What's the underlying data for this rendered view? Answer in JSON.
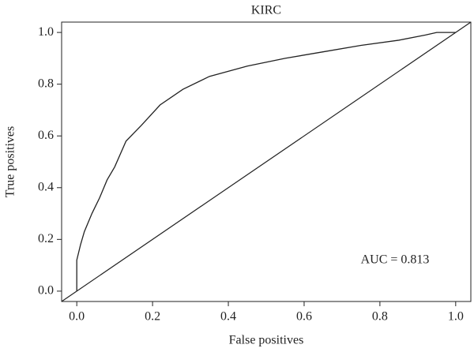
{
  "chart_data": {
    "type": "line",
    "title": "KIRC",
    "x_label": "False positives",
    "y_label": "True positives",
    "annotation": "AUC = 0.813",
    "x": [
      0,
      0,
      0.01,
      0.02,
      0.04,
      0.05,
      0.06,
      0.08,
      0.1,
      0.13,
      0.17,
      0.22,
      0.28,
      0.35,
      0.45,
      0.55,
      0.65,
      0.75,
      0.85,
      0.92,
      0.95,
      1
    ],
    "series": [
      {
        "color": "#222222",
        "values": [
          0,
          0.12,
          0.18,
          0.23,
          0.3,
          0.33,
          0.36,
          0.43,
          0.48,
          0.58,
          0.64,
          0.72,
          0.78,
          0.83,
          0.87,
          0.9,
          0.925,
          0.95,
          0.97,
          0.99,
          1,
          1
        ]
      }
    ],
    "abline": {
      "intercept": 0,
      "slope": 1,
      "color": "#222222"
    },
    "xlim": [
      -0.04,
      1.04
    ],
    "ylim": [
      -0.04,
      1.04
    ],
    "xticks": [
      {
        "value": 0,
        "label": "0.0"
      },
      0.2,
      0.4,
      0.6,
      0.8,
      {
        "value": 1,
        "label": "1.0"
      }
    ],
    "yticks": [
      {
        "value": 0,
        "label": "0.0"
      },
      0.2,
      0.4,
      0.6,
      0.8,
      {
        "value": 1,
        "label": "1.0"
      }
    ]
  }
}
